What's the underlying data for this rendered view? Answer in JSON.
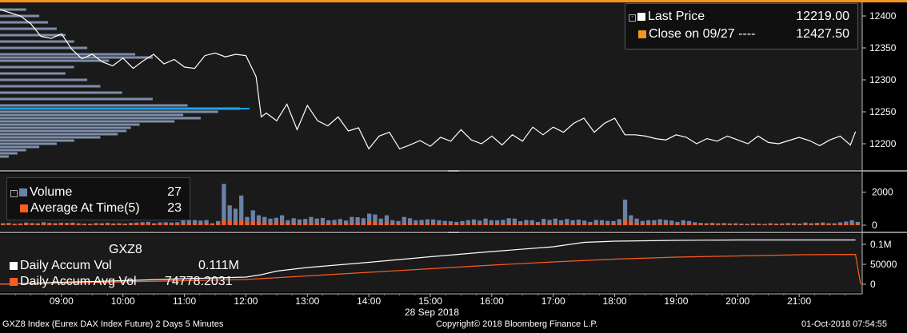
{
  "chart_data": [
    {
      "type": "line",
      "name": "price-panel",
      "y_ticks": [
        12200,
        12250,
        12300,
        12350,
        12400
      ],
      "ylim": [
        12165,
        12415
      ],
      "x_ticks": [
        "09:00",
        "10:00",
        "11:00",
        "12:00",
        "13:00",
        "14:00",
        "15:00",
        "16:00",
        "17:00",
        "18:00",
        "19:00",
        "20:00",
        "21:00"
      ],
      "x_date_label": "28 Sep 2018",
      "series": [
        {
          "name": "Last Price",
          "color": "#ffffff",
          "x": [
            "08:00",
            "08:10",
            "08:20",
            "08:30",
            "08:40",
            "08:50",
            "09:00",
            "09:10",
            "09:20",
            "09:30",
            "09:40",
            "09:50",
            "10:00",
            "10:10",
            "10:20",
            "10:30",
            "10:40",
            "10:50",
            "11:00",
            "11:10",
            "11:20",
            "11:30",
            "11:40",
            "11:50",
            "12:00",
            "12:10",
            "12:15",
            "12:20",
            "12:30",
            "12:40",
            "12:50",
            "13:00",
            "13:10",
            "13:20",
            "13:30",
            "13:40",
            "13:50",
            "14:00",
            "14:10",
            "14:20",
            "14:30",
            "14:40",
            "14:50",
            "15:00",
            "15:10",
            "15:20",
            "15:30",
            "15:40",
            "15:50",
            "16:00",
            "16:10",
            "16:20",
            "16:30",
            "16:40",
            "16:50",
            "17:00",
            "17:10",
            "17:20",
            "17:30",
            "17:40",
            "17:50",
            "18:00",
            "18:10",
            "18:20",
            "18:30",
            "18:40",
            "18:50",
            "19:00",
            "19:10",
            "19:20",
            "19:30",
            "19:40",
            "19:50",
            "20:00",
            "20:10",
            "20:20",
            "20:30",
            "20:40",
            "20:50",
            "21:00",
            "21:10",
            "21:20",
            "21:30",
            "21:40",
            "21:50",
            "21:55"
          ],
          "values": [
            12410,
            12405,
            12400,
            12388,
            12368,
            12365,
            12372,
            12348,
            12333,
            12340,
            12328,
            12322,
            12334,
            12318,
            12330,
            12340,
            12325,
            12332,
            12320,
            12318,
            12338,
            12342,
            12336,
            12340,
            12338,
            12305,
            12242,
            12248,
            12236,
            12262,
            12222,
            12260,
            12236,
            12228,
            12242,
            12220,
            12225,
            12192,
            12212,
            12218,
            12192,
            12198,
            12205,
            12196,
            12210,
            12204,
            12222,
            12206,
            12200,
            12212,
            12198,
            12214,
            12204,
            12226,
            12214,
            12226,
            12218,
            12232,
            12240,
            12218,
            12232,
            12240,
            12214,
            12214,
            12212,
            12208,
            12206,
            12214,
            12210,
            12200,
            12208,
            12204,
            12212,
            12206,
            12200,
            12212,
            12202,
            12200,
            12205,
            12210,
            12205,
            12197,
            12206,
            12212,
            12198,
            12219
          ]
        },
        {
          "name": "Close on 09/27",
          "color": "#f7941d",
          "values": [
            12427.5
          ]
        }
      ],
      "volume_profile": {
        "prices": [
          12410,
          12400,
          12390,
          12380,
          12370,
          12360,
          12350,
          12340,
          12335,
          12330,
          12320,
          12310,
          12300,
          12290,
          12280,
          12270,
          12260,
          12255,
          12250,
          12245,
          12240,
          12235,
          12230,
          12225,
          12220,
          12215,
          12210,
          12205,
          12200,
          12195,
          12190,
          12185,
          12180
        ],
        "volumes": [
          12,
          18,
          22,
          26,
          30,
          34,
          40,
          62,
          70,
          50,
          34,
          30,
          40,
          46,
          56,
          70,
          86,
          110,
          100,
          84,
          92,
          80,
          64,
          60,
          58,
          54,
          46,
          34,
          26,
          18,
          12,
          8,
          4
        ]
      },
      "legend_placement": "top-right"
    },
    {
      "type": "bar",
      "name": "volume-panel",
      "y_ticks": [
        0,
        2000
      ],
      "ylim": [
        0,
        3000
      ],
      "series": [
        {
          "name": "Volume",
          "color": "#6b82a8",
          "values": [
            120,
            140,
            90,
            110,
            160,
            130,
            120,
            180,
            140,
            120,
            150,
            140,
            160,
            120,
            100,
            90,
            130,
            120,
            150,
            110,
            120,
            100,
            140,
            160,
            180,
            200,
            120,
            170,
            180,
            160,
            180,
            320,
            320,
            310,
            280,
            310,
            120,
            250,
            2500,
            1200,
            1000,
            1800,
            500,
            900,
            600,
            500,
            400,
            450,
            600,
            300,
            420,
            350,
            380,
            500,
            400,
            440,
            300,
            320,
            380,
            280,
            500,
            480,
            420,
            700,
            650,
            400,
            600,
            300,
            250,
            500,
            420,
            300,
            320,
            360,
            350,
            300,
            260,
            240,
            200,
            250,
            300,
            350,
            280,
            400,
            300,
            300,
            320,
            420,
            400,
            240,
            320,
            300,
            200,
            380,
            320,
            400,
            300,
            380,
            300,
            340,
            280,
            200,
            320,
            300,
            260,
            250,
            360,
            1550,
            600,
            400,
            260,
            300,
            300,
            360,
            320,
            280,
            200,
            300,
            250,
            180,
            140,
            120,
            140,
            120,
            130,
            110,
            120,
            100,
            90,
            110,
            100,
            80,
            120,
            100,
            110,
            130,
            120,
            100,
            160,
            120,
            140,
            160,
            120,
            120,
            170,
            220,
            300,
            200
          ]
        },
        {
          "name": "Average At Time(5)",
          "color": "#ff5a1f",
          "values": [
            60,
            70,
            60,
            70,
            80,
            70,
            60,
            80,
            70,
            60,
            70,
            70,
            80,
            60,
            50,
            50,
            60,
            60,
            70,
            60,
            60,
            50,
            70,
            80,
            90,
            100,
            60,
            80,
            90,
            80,
            90,
            120,
            130,
            130,
            120,
            130,
            80,
            120,
            300,
            260,
            250,
            300,
            180,
            220,
            180,
            160,
            150,
            160,
            180,
            120,
            150,
            130,
            140,
            160,
            150,
            150,
            110,
            120,
            130,
            100,
            150,
            150,
            140,
            200,
            190,
            140,
            170,
            110,
            100,
            150,
            140,
            110,
            120,
            130,
            120,
            110,
            100,
            90,
            80,
            90,
            100,
            110,
            100,
            130,
            110,
            110,
            110,
            140,
            130,
            90,
            110,
            110,
            80,
            130,
            110,
            140,
            110,
            130,
            110,
            120,
            100,
            80,
            110,
            110,
            100,
            90,
            120,
            300,
            180,
            150,
            100,
            110,
            110,
            120,
            110,
            100,
            80,
            110,
            90,
            70,
            60,
            50,
            60,
            50,
            50,
            50,
            50,
            40,
            40,
            50,
            40,
            40,
            50,
            40,
            50,
            50,
            50,
            40,
            60,
            50,
            60,
            60,
            50,
            50,
            60,
            80,
            100,
            80
          ]
        }
      ],
      "legend_values": {
        "Volume": "27",
        "Average At Time(5)": "23"
      }
    },
    {
      "type": "line",
      "name": "accum-panel",
      "y_ticks": [
        "0",
        "50000",
        "0.1M"
      ],
      "ylim": [
        0,
        120000
      ],
      "series": [
        {
          "name": "Daily Accum Vol",
          "color": "#ffffff",
          "x": [
            "08:00",
            "09:00",
            "10:00",
            "11:00",
            "12:00",
            "12:15",
            "12:30",
            "13:00",
            "14:00",
            "15:00",
            "16:00",
            "17:00",
            "17:30",
            "18:00",
            "19:00",
            "20:00",
            "21:00",
            "21:55"
          ],
          "values": [
            500,
            5000,
            9000,
            14000,
            18000,
            24000,
            33000,
            42000,
            55000,
            69000,
            82000,
            94000,
            105000,
            108000,
            110000,
            111000,
            111000,
            111000
          ]
        },
        {
          "name": "Daily Accum Avg Vol",
          "color": "#ff5a1f",
          "x": [
            "08:00",
            "09:00",
            "10:00",
            "11:00",
            "12:00",
            "13:00",
            "14:00",
            "15:00",
            "16:00",
            "17:00",
            "18:00",
            "19:00",
            "20:00",
            "21:00",
            "21:55",
            "22:00"
          ],
          "values": [
            300,
            3000,
            6000,
            9000,
            12000,
            21000,
            30000,
            39000,
            48000,
            56000,
            63000,
            68000,
            71000,
            74000,
            74778,
            0
          ]
        }
      ],
      "legend_values": {
        "Daily Accum Vol": "0.111M",
        "Daily Accum Avg Vol": "74778.2031"
      },
      "panel_title": "GXZ8"
    }
  ],
  "legend": {
    "last_price_label": "Last Price",
    "last_price_value": "12219.00",
    "close_label": "Close on 09/27 ----",
    "close_value": "12427.50",
    "volume_label": "Volume",
    "volume_value": "27",
    "avg_label": "Average At Time(5)",
    "avg_value": "23",
    "accum_title": "GXZ8",
    "accum_label": "Daily Accum Vol",
    "accum_value": "0.111M",
    "accum_avg_label": "Daily Accum Avg Vol",
    "accum_avg_value": "74778.2031"
  },
  "footer": {
    "left": "GXZ8 Index (Eurex DAX Index Future) 2 Days 5 Minutes",
    "center": "Copyright© 2018 Bloomberg Finance L.P.",
    "right": "01-Oct-2018 07:54:55"
  },
  "colors": {
    "accent": "#f7941d",
    "price": "#ffffff",
    "volume": "#6b82a8",
    "avg": "#ff5a1f",
    "profile": "#8fa3c4",
    "poc": "#1ea0e6"
  }
}
